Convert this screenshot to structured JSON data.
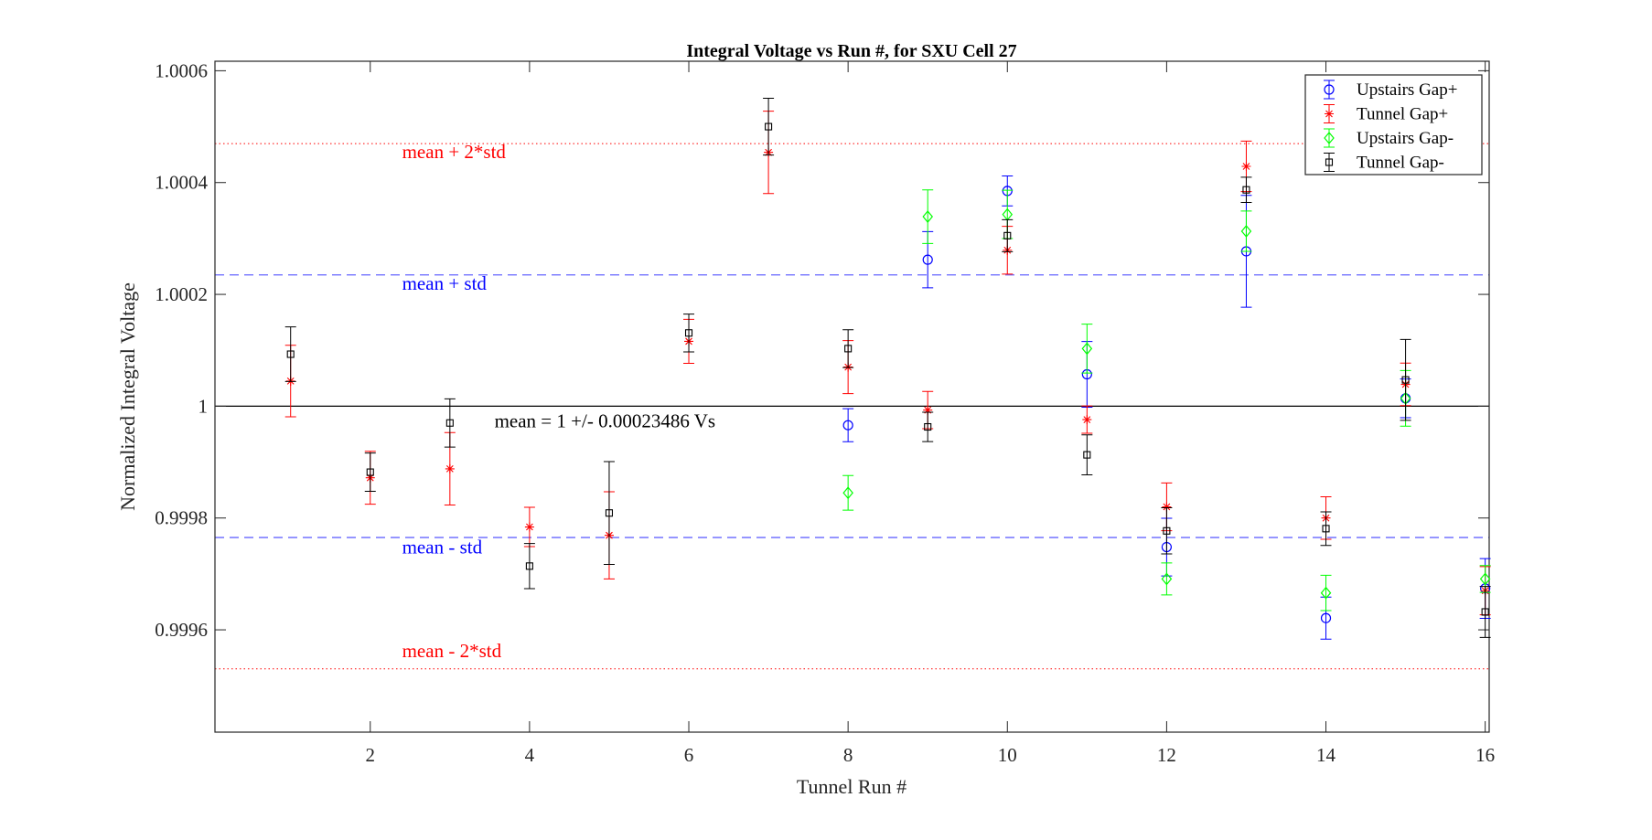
{
  "chart_data": {
    "type": "scatter",
    "title": "Integral Voltage vs Run #, for SXU Cell 27",
    "xlabel": "Tunnel Run #",
    "ylabel": "Normalized Integral Voltage",
    "xlim": [
      0.05,
      16.05
    ],
    "ylim": [
      0.999417,
      1.000617
    ],
    "xticks": [
      2,
      4,
      6,
      8,
      10,
      12,
      14,
      16
    ],
    "xtick_labels": [
      "2",
      "4",
      "6",
      "8",
      "10",
      "12",
      "14",
      "16"
    ],
    "yticks": [
      0.9996,
      0.9998,
      1.0,
      1.0002,
      1.0004,
      1.0006
    ],
    "ytick_labels": [
      "0.9996",
      "0.9998",
      "1",
      "1.0002",
      "1.0004",
      "1.0006"
    ],
    "grid": false,
    "legend_position": "top-right",
    "x": [
      1,
      2,
      3,
      4,
      5,
      6,
      7,
      8,
      9,
      10,
      11,
      12,
      13,
      14,
      15,
      16
    ],
    "series": [
      {
        "name": "Upstairs Gap+",
        "color": "#0000ff",
        "marker": "circle",
        "values": [
          null,
          null,
          null,
          null,
          null,
          null,
          null,
          0.999966,
          1.000262,
          1.000385,
          1.000057,
          0.999748,
          1.000277,
          0.999621,
          1.000014,
          0.999674
        ],
        "errors": [
          null,
          null,
          null,
          null,
          null,
          null,
          null,
          2.96e-05,
          5.02e-05,
          2.68e-05,
          5.87e-05,
          5.16e-05,
          0.0001,
          3.76e-05,
          3.47e-05,
          5.35e-05
        ]
      },
      {
        "name": "Tunnel Gap+",
        "color": "#ff0000",
        "marker": "star",
        "values": [
          1.000045,
          0.999872,
          0.999888,
          0.999784,
          0.999769,
          1.000116,
          1.000454,
          1.00007,
          0.999993,
          1.000279,
          0.999976,
          0.99982,
          1.000429,
          0.9998,
          1.000039,
          0.99967
        ],
        "errors": [
          6.39e-05,
          4.74e-05,
          6.48e-05,
          3.52e-05,
          7.79e-05,
          3.94e-05,
          7.37e-05,
          4.74e-05,
          3.33e-05,
          4.27e-05,
          2.44e-05,
          4.27e-05,
          4.51e-05,
          3.8e-05,
          3.8e-05,
          4.32e-05
        ]
      },
      {
        "name": "Upstairs Gap-",
        "color": "#00ff00",
        "marker": "diamond",
        "values": [
          null,
          null,
          null,
          null,
          null,
          null,
          null,
          0.999845,
          1.000339,
          1.000343,
          1.000103,
          0.999691,
          1.000313,
          0.999666,
          1.000014,
          0.999691
        ],
        "errors": [
          null,
          null,
          null,
          null,
          null,
          null,
          null,
          3.1e-05,
          4.79e-05,
          4.32e-05,
          4.37e-05,
          2.86e-05,
          3.61e-05,
          3.15e-05,
          4.98e-05,
          2.4e-05
        ]
      },
      {
        "name": "Tunnel Gap-",
        "color": "#000000",
        "marker": "square",
        "values": [
          1.000093,
          0.999882,
          0.99997,
          0.999714,
          0.999809,
          1.000131,
          1.0005,
          1.000103,
          0.999963,
          1.000305,
          0.999913,
          0.999777,
          1.000387,
          0.999781,
          1.000047,
          0.999632
        ],
        "errors": [
          4.89e-05,
          3.43e-05,
          4.32e-05,
          4.04e-05,
          9.2e-05,
          3.38e-05,
          5.07e-05,
          3.38e-05,
          2.63e-05,
          2.86e-05,
          3.57e-05,
          4.13e-05,
          2.25e-05,
          3e-05,
          7.23e-05,
          4.55e-05
        ]
      }
    ],
    "reference_lines": [
      {
        "name": "mean",
        "y": 1.0,
        "color": "#000000",
        "style": "solid"
      },
      {
        "name": "mean-plus-std",
        "y": 1.00023486,
        "color": "#6666ff",
        "style": "dashed"
      },
      {
        "name": "mean-minus-std",
        "y": 0.99976514,
        "color": "#6666ff",
        "style": "dashed"
      },
      {
        "name": "mean-plus-2std",
        "y": 1.00046972,
        "color": "#ff0000",
        "style": "dotted"
      },
      {
        "name": "mean-minus-2std",
        "y": 0.99953028,
        "color": "#ff0000",
        "style": "dotted"
      }
    ],
    "annotations": [
      {
        "text": "mean + 2*std",
        "x": 2.4,
        "y": 1.000444,
        "color": "#ff0000"
      },
      {
        "text": "mean + std",
        "x": 2.4,
        "y": 1.000208,
        "color": "#0000ff"
      },
      {
        "text": "mean = 1 +/- 0.00023486 Vs",
        "x": 3.56,
        "y": 0.999962,
        "color": "#000000"
      },
      {
        "text": "mean - std",
        "x": 2.4,
        "y": 0.999737,
        "color": "#0000ff"
      },
      {
        "text": "mean - 2*std",
        "x": 2.4,
        "y": 0.999551,
        "color": "#ff0000"
      }
    ]
  }
}
